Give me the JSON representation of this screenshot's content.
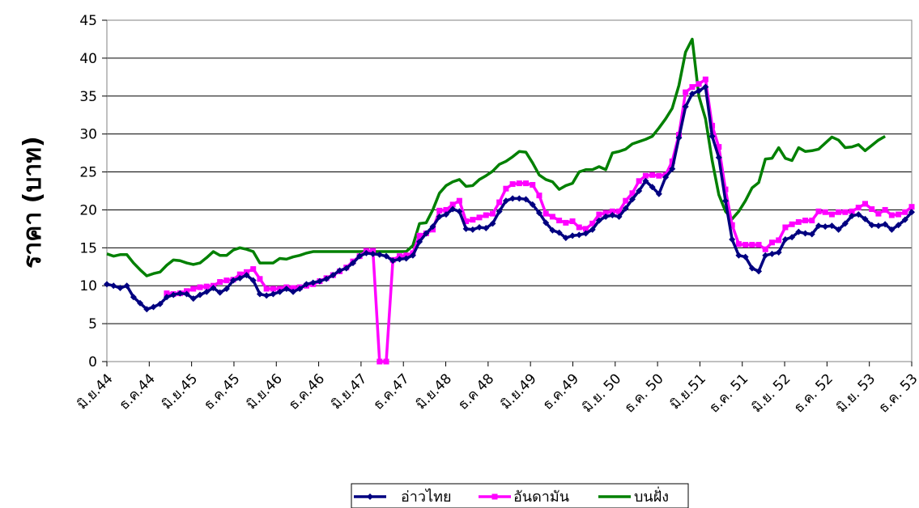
{
  "chart_data": {
    "type": "line",
    "title": "",
    "xlabel": "",
    "ylabel": "ราคา (บาท)",
    "ylim": [
      0,
      45
    ],
    "yticks": [
      0,
      5,
      10,
      15,
      20,
      25,
      30,
      35,
      40,
      45
    ],
    "grid": "horizontal",
    "legend_position": "bottom",
    "x_tick_labels": [
      "มิ.ย.44",
      "ธ.ค.44",
      "มิ.ย.45",
      "ธ.ค.45",
      "มิ.ย.46",
      "ธ.ค.46",
      "มิ.ย.47",
      "ธ.ค.47",
      "มิ.ย.48",
      "ธ.ค 48",
      "มิ.ย.49",
      "ธ.ค.49",
      "มิ.ย. 50",
      "ธ.ค. 50",
      "มิ.ย.51",
      "ธ.ค. 51",
      "มิ.ย. 52",
      "ธ.ค. 52",
      "มิ.ย. 53",
      "ธ.ค. 53"
    ],
    "series": [
      {
        "name": "อ่าวไทย",
        "color": "#000080",
        "marker": "diamond",
        "values": [
          10.2,
          10,
          9.7,
          10,
          8.5,
          7.7,
          6.9,
          7.2,
          7.6,
          8.5,
          8.8,
          9,
          8.9,
          8.3,
          8.8,
          9.2,
          9.7,
          9.1,
          9.6,
          10.7,
          11,
          11.4,
          10.7,
          8.9,
          8.7,
          8.9,
          9.2,
          9.6,
          9.2,
          9.6,
          10.2,
          10.4,
          10.6,
          10.9,
          11.4,
          12,
          12.3,
          13,
          13.9,
          14.3,
          14.2,
          14.1,
          13.9,
          13.3,
          13.5,
          13.6,
          14,
          15.8,
          16.9,
          17.8,
          19.1,
          19.4,
          20.1,
          19.8,
          17.5,
          17.4,
          17.7,
          17.6,
          18.2,
          19.8,
          21.2,
          21.5,
          21.5,
          21.4,
          20.7,
          19.6,
          18.3,
          17.3,
          17,
          16.3,
          16.6,
          16.7,
          16.9,
          17.4,
          18.6,
          19.1,
          19.3,
          19.1,
          20.2,
          21.4,
          22.5,
          23.8,
          23,
          22.1,
          24.3,
          25.4,
          29.5,
          33.6,
          35.3,
          35.7,
          36.2,
          29.7,
          26.9,
          21.2,
          16.1,
          14,
          13.8,
          12.3,
          11.9,
          14,
          14.2,
          14.4,
          16.1,
          16.4,
          17.1,
          16.9,
          16.8,
          17.9,
          17.8,
          17.9,
          17.4,
          18.2,
          19.2,
          19.4,
          18.8,
          18,
          17.9,
          18.1,
          17.4,
          18,
          18.7,
          19.7
        ]
      },
      {
        "name": "อันดามัน",
        "color": "#FF00FF",
        "marker": "square",
        "values": [
          null,
          null,
          null,
          null,
          null,
          null,
          null,
          null,
          null,
          9,
          8.9,
          9,
          9.3,
          9.6,
          9.8,
          9.9,
          10,
          10.5,
          10.7,
          10.8,
          11.5,
          11.8,
          12.2,
          10.9,
          9.6,
          9.6,
          9.6,
          9.8,
          9.7,
          9.8,
          10,
          10.2,
          10.6,
          11,
          11.4,
          11.9,
          12.4,
          13.2,
          13.9,
          14.6,
          14.6,
          0,
          0,
          13.4,
          13.9,
          14,
          14.3,
          16.6,
          16.9,
          17.4,
          19.9,
          20,
          20.7,
          21.2,
          18.5,
          18.7,
          19,
          19.3,
          19.5,
          21,
          22.8,
          23.4,
          23.5,
          23.5,
          23.3,
          21.9,
          19.5,
          19.1,
          18.6,
          18.3,
          18.5,
          17.7,
          17.5,
          18.2,
          19.4,
          19.6,
          19.8,
          19.8,
          21.2,
          22.2,
          23.8,
          24.5,
          24.6,
          24.5,
          24.6,
          26.4,
          29.9,
          35.5,
          36.2,
          36.6,
          37.2,
          31.1,
          28.3,
          22.7,
          18,
          15.5,
          15.4,
          15.4,
          15.4,
          14.8,
          15.7,
          16,
          17.7,
          18.1,
          18.4,
          18.6,
          18.6,
          19.8,
          19.7,
          19.4,
          19.7,
          19.7,
          19.8,
          20.3,
          20.8,
          20.1,
          19.5,
          20,
          19.3,
          19.4,
          19.7,
          20.4
        ]
      },
      {
        "name": "บนฝั่ง",
        "color": "#008000",
        "marker": "none",
        "values": [
          14.2,
          13.9,
          14.1,
          14.1,
          13,
          12.1,
          11.3,
          11.6,
          11.8,
          12.7,
          13.4,
          13.3,
          13,
          12.8,
          13,
          13.7,
          14.5,
          14,
          14,
          14.7,
          15,
          14.8,
          14.5,
          13,
          13,
          13,
          13.6,
          13.5,
          13.8,
          14,
          14.3,
          14.5,
          14.5,
          14.5,
          14.5,
          14.5,
          14.5,
          14.5,
          14.5,
          14.5,
          14.5,
          14.5,
          14.5,
          14.5,
          14.5,
          14.5,
          15.3,
          18.2,
          18.3,
          20,
          22.2,
          23.2,
          23.7,
          24,
          23.1,
          23.2,
          24,
          24.5,
          25.1,
          26,
          26.4,
          27,
          27.7,
          27.6,
          26.2,
          24.6,
          24,
          23.7,
          22.7,
          23.2,
          23.5,
          25,
          25.3,
          25.3,
          25.7,
          25.3,
          27.5,
          27.7,
          28,
          28.7,
          29,
          29.3,
          29.7,
          30.8,
          32,
          33.4,
          36.4,
          40.8,
          42.5,
          35,
          32,
          26.5,
          22,
          19.8,
          18.8,
          19.8,
          21.2,
          22.9,
          23.6,
          26.7,
          26.8,
          28.2,
          26.8,
          26.5,
          28.2,
          27.7,
          27.8,
          28,
          28.8,
          29.6,
          29.2,
          28.2,
          28.3,
          28.6,
          27.8,
          28.5,
          29.2,
          29.7
        ]
      }
    ]
  }
}
